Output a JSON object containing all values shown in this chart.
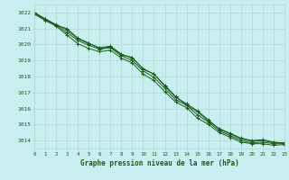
{
  "title": "Graphe pression niveau de la mer (hPa)",
  "bg_color": "#c8eef0",
  "grid_color": "#b0d8d0",
  "line_color": "#1a5c1a",
  "x_min": 0,
  "x_max": 23,
  "y_min": 1013.5,
  "y_max": 1022.5,
  "y_ticks": [
    1014,
    1015,
    1016,
    1017,
    1018,
    1019,
    1020,
    1021,
    1022
  ],
  "series": [
    [
      1022.0,
      1021.6,
      1021.2,
      1021.0,
      1020.4,
      1020.1,
      1019.75,
      1019.85,
      1019.35,
      1019.2,
      1018.45,
      1018.15,
      1017.45,
      1016.75,
      1016.2,
      1015.8,
      1015.2,
      1014.75,
      1014.45,
      1014.15,
      1014.0,
      1014.05,
      1013.9,
      1013.85
    ],
    [
      1022.0,
      1021.6,
      1021.25,
      1020.9,
      1020.35,
      1020.05,
      1019.8,
      1019.9,
      1019.4,
      1019.15,
      1018.5,
      1018.15,
      1017.4,
      1016.7,
      1016.3,
      1015.85,
      1015.3,
      1014.7,
      1014.4,
      1014.1,
      1013.95,
      1014.0,
      1013.85,
      1013.85
    ],
    [
      1021.95,
      1021.55,
      1021.2,
      1020.75,
      1020.25,
      1019.95,
      1019.7,
      1019.8,
      1019.3,
      1019.0,
      1018.35,
      1017.95,
      1017.25,
      1016.55,
      1016.2,
      1015.6,
      1015.15,
      1014.6,
      1014.3,
      1014.0,
      1013.85,
      1013.9,
      1013.8,
      1013.8
    ],
    [
      1021.9,
      1021.5,
      1021.15,
      1020.6,
      1020.05,
      1019.75,
      1019.55,
      1019.65,
      1019.15,
      1018.85,
      1018.15,
      1017.75,
      1017.05,
      1016.4,
      1016.05,
      1015.4,
      1015.0,
      1014.5,
      1014.2,
      1013.9,
      1013.8,
      1013.8,
      1013.7,
      1013.75
    ]
  ]
}
